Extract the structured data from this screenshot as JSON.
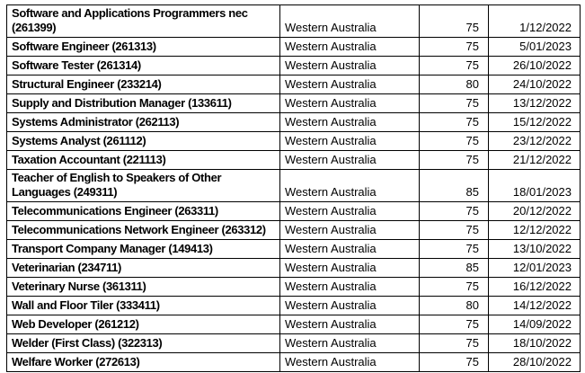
{
  "table": {
    "rows": [
      {
        "occupation": "Software and Applications Programmers nec\n(261399)",
        "state": "Western Australia",
        "score": "75",
        "date": "1/12/2022"
      },
      {
        "occupation": "Software Engineer (261313)",
        "state": "Western Australia",
        "score": "75",
        "date": "5/01/2023"
      },
      {
        "occupation": "Software Tester (261314)",
        "state": "Western Australia",
        "score": "75",
        "date": "26/10/2022"
      },
      {
        "occupation": "Structural Engineer (233214)",
        "state": "Western Australia",
        "score": "80",
        "date": "24/10/2022"
      },
      {
        "occupation": "Supply and Distribution Manager (133611)",
        "state": "Western Australia",
        "score": "75",
        "date": "13/12/2022"
      },
      {
        "occupation": "Systems Administrator (262113)",
        "state": "Western Australia",
        "score": "75",
        "date": "15/12/2022"
      },
      {
        "occupation": "Systems Analyst (261112)",
        "state": "Western Australia",
        "score": "75",
        "date": "23/12/2022"
      },
      {
        "occupation": "Taxation Accountant (221113)",
        "state": "Western Australia",
        "score": "75",
        "date": "21/12/2022"
      },
      {
        "occupation": "Teacher of English to Speakers of Other\nLanguages (249311)",
        "state": "Western Australia",
        "score": "85",
        "date": "18/01/2023"
      },
      {
        "occupation": "Telecommunications Engineer (263311)",
        "state": "Western Australia",
        "score": "75",
        "date": "20/12/2022"
      },
      {
        "occupation": "Telecommunications Network Engineer (263312)",
        "state": "Western Australia",
        "score": "75",
        "date": "12/12/2022"
      },
      {
        "occupation": "Transport Company Manager (149413)",
        "state": "Western Australia",
        "score": "75",
        "date": "13/10/2022"
      },
      {
        "occupation": "Veterinarian (234711)",
        "state": "Western Australia",
        "score": "85",
        "date": "12/01/2023"
      },
      {
        "occupation": "Veterinary Nurse (361311)",
        "state": "Western Australia",
        "score": "75",
        "date": "16/12/2022"
      },
      {
        "occupation": "Wall and Floor Tiler (333411)",
        "state": "Western Australia",
        "score": "80",
        "date": "14/12/2022"
      },
      {
        "occupation": "Web Developer (261212)",
        "state": "Western Australia",
        "score": "75",
        "date": "14/09/2022"
      },
      {
        "occupation": "Welder (First Class) (322313)",
        "state": "Western Australia",
        "score": "75",
        "date": "18/10/2022"
      },
      {
        "occupation": "Welfare Worker (272613)",
        "state": "Western Australia",
        "score": "75",
        "date": "28/10/2022"
      }
    ]
  }
}
